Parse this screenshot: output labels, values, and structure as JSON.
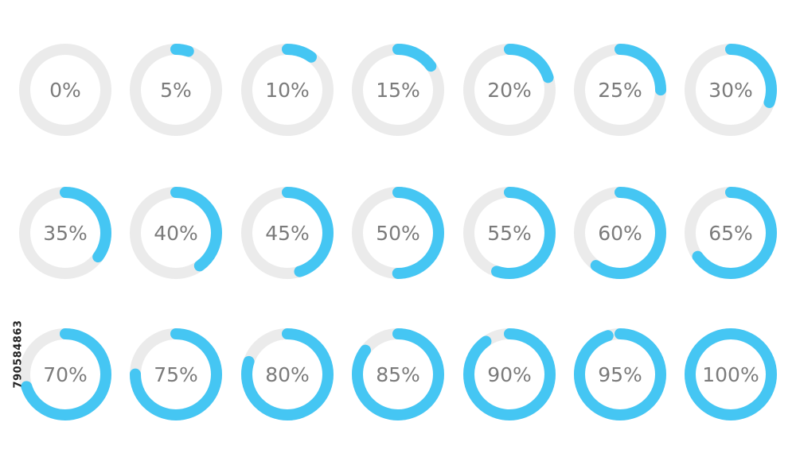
{
  "colors": {
    "track": "#ebebeb",
    "progress": "#45c6f3",
    "label": "#7b7b7b",
    "background": "#ffffff"
  },
  "rings": [
    {
      "value": 0,
      "label": "0%"
    },
    {
      "value": 5,
      "label": "5%"
    },
    {
      "value": 10,
      "label": "10%"
    },
    {
      "value": 15,
      "label": "15%"
    },
    {
      "value": 20,
      "label": "20%"
    },
    {
      "value": 25,
      "label": "25%"
    },
    {
      "value": 30,
      "label": "30%"
    },
    {
      "value": 35,
      "label": "35%"
    },
    {
      "value": 40,
      "label": "40%"
    },
    {
      "value": 45,
      "label": "45%"
    },
    {
      "value": 50,
      "label": "50%"
    },
    {
      "value": 55,
      "label": "55%"
    },
    {
      "value": 60,
      "label": "60%"
    },
    {
      "value": 65,
      "label": "65%"
    },
    {
      "value": 70,
      "label": "70%"
    },
    {
      "value": 75,
      "label": "75%"
    },
    {
      "value": 80,
      "label": "80%"
    },
    {
      "value": 85,
      "label": "85%"
    },
    {
      "value": 90,
      "label": "90%"
    },
    {
      "value": 95,
      "label": "95%"
    },
    {
      "value": 100,
      "label": "100%"
    }
  ],
  "stock_id": "790584863"
}
